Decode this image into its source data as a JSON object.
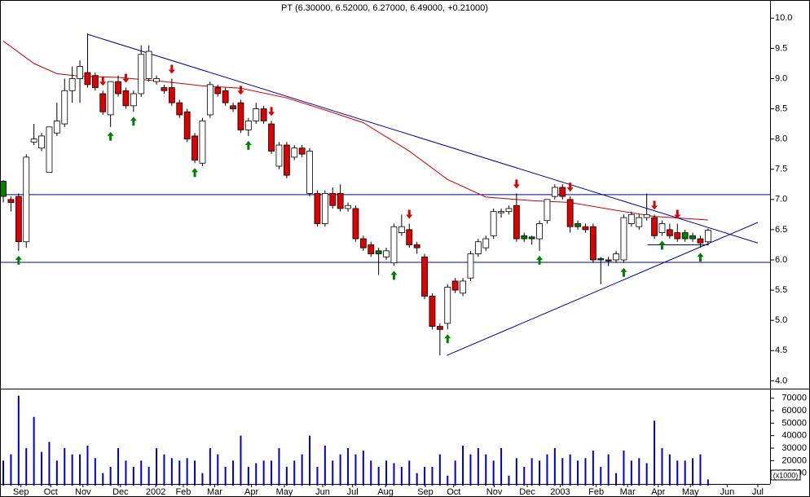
{
  "chart_data": {
    "type": "candlestick",
    "title": "PT (6.30000, 6.52000, 6.27000, 6.49000, +0.21000)",
    "xlim": [
      -0.43,
      100.1
    ],
    "xticks": [
      {
        "value": 2.3,
        "label": "Sep"
      },
      {
        "value": 6.2,
        "label": "Oct"
      },
      {
        "value": 10.4,
        "label": "Nov"
      },
      {
        "value": 15.3,
        "label": "Dec"
      },
      {
        "value": 19.9,
        "label": "2002"
      },
      {
        "value": 23.5,
        "label": "Feb"
      },
      {
        "value": 27.6,
        "label": "Mar"
      },
      {
        "value": 32.4,
        "label": "Apr"
      },
      {
        "value": 36.7,
        "label": "May"
      },
      {
        "value": 41.7,
        "label": "Jun"
      },
      {
        "value": 45.6,
        "label": "Jul"
      },
      {
        "value": 49.9,
        "label": "Aug"
      },
      {
        "value": 55.1,
        "label": "Sep"
      },
      {
        "value": 58.8,
        "label": "Oct"
      },
      {
        "value": 64.1,
        "label": "Nov"
      },
      {
        "value": 68.4,
        "label": "Dec"
      },
      {
        "value": 72.7,
        "label": "2003"
      },
      {
        "value": 77.4,
        "label": "Feb"
      },
      {
        "value": 81.5,
        "label": "Mar"
      },
      {
        "value": 85.5,
        "label": "Apr"
      },
      {
        "value": 89.7,
        "label": "May"
      },
      {
        "value": 94.5,
        "label": "Jun"
      },
      {
        "value": 98.5,
        "label": "Jul"
      }
    ],
    "ylim": [
      3.87,
      10.3
    ],
    "yticks": [
      {
        "value": 4,
        "label": "4.0"
      },
      4.5,
      {
        "value": 5,
        "label": "5.0"
      },
      5.5,
      {
        "value": 6,
        "label": "6.0"
      },
      6.5,
      {
        "value": 7,
        "label": "7.0"
      },
      7.5,
      {
        "value": 8,
        "label": "8.0"
      },
      8.5,
      {
        "value": 9,
        "label": "9.0"
      },
      9.5,
      {
        "value": 10,
        "label": "10.0"
      }
    ],
    "colors": {
      "up": "#ffffff",
      "down": "#dd0000",
      "down_above_previous": "#008000",
      "buy": "#008000",
      "sell": "#dd0000"
    },
    "candles": [
      [
        7.3,
        7.32,
        6.95,
        7.05
      ],
      [
        7.0,
        7.05,
        6.8,
        6.95
      ],
      [
        7.05,
        7.1,
        6.15,
        6.3
      ],
      [
        6.3,
        7.75,
        6.2,
        7.7
      ],
      [
        7.95,
        8.25,
        7.9,
        8.0
      ],
      [
        7.85,
        8.1,
        7.8,
        8.05
      ],
      [
        7.45,
        8.2,
        7.45,
        8.2
      ],
      [
        8.1,
        8.6,
        8.05,
        8.3
      ],
      [
        8.25,
        9.0,
        8.2,
        8.8
      ],
      [
        8.8,
        9.2,
        8.6,
        9.0
      ],
      [
        9.0,
        9.3,
        8.6,
        9.2
      ],
      [
        9.1,
        9.75,
        8.85,
        8.9
      ],
      [
        9.05,
        9.1,
        8.8,
        8.85
      ],
      [
        8.75,
        8.8,
        8.4,
        8.45
      ],
      [
        8.4,
        8.95,
        8.2,
        8.95
      ],
      [
        8.95,
        9.05,
        8.7,
        8.75
      ],
      [
        8.8,
        8.85,
        8.5,
        8.55
      ],
      [
        8.55,
        8.8,
        8.45,
        8.75
      ],
      [
        8.75,
        9.55,
        8.7,
        9.4
      ],
      [
        9.0,
        9.55,
        8.95,
        9.45
      ],
      [
        8.95,
        9.05,
        8.9,
        9.0
      ],
      [
        8.85,
        8.9,
        8.75,
        8.8
      ],
      [
        8.85,
        9.0,
        8.55,
        8.6
      ],
      [
        8.6,
        8.65,
        8.35,
        8.4
      ],
      [
        8.45,
        8.5,
        7.95,
        8.0
      ],
      [
        8.05,
        8.1,
        7.6,
        7.65
      ],
      [
        7.6,
        8.35,
        7.55,
        8.3
      ],
      [
        8.4,
        8.95,
        8.35,
        8.9
      ],
      [
        8.85,
        8.9,
        8.7,
        8.75
      ],
      [
        8.8,
        8.85,
        8.55,
        8.6
      ],
      [
        8.55,
        8.6,
        8.45,
        8.5
      ],
      [
        8.6,
        8.65,
        8.1,
        8.15
      ],
      [
        8.15,
        8.35,
        8.05,
        8.3
      ],
      [
        8.3,
        8.6,
        8.25,
        8.5
      ],
      [
        8.5,
        8.55,
        8.25,
        8.3
      ],
      [
        8.25,
        8.3,
        7.75,
        7.8
      ],
      [
        7.55,
        7.95,
        7.5,
        7.9
      ],
      [
        7.9,
        7.95,
        7.35,
        7.4
      ],
      [
        7.7,
        7.9,
        7.65,
        7.85
      ],
      [
        7.85,
        7.9,
        7.7,
        7.75
      ],
      [
        7.1,
        7.85,
        7.05,
        7.8
      ],
      [
        7.1,
        7.15,
        6.55,
        6.6
      ],
      [
        6.6,
        7.15,
        6.55,
        7.1
      ],
      [
        7.1,
        7.2,
        6.85,
        6.9
      ],
      [
        7.1,
        7.25,
        6.8,
        6.85
      ],
      [
        6.85,
        6.95,
        6.8,
        6.9
      ],
      [
        6.85,
        6.9,
        6.3,
        6.35
      ],
      [
        6.35,
        6.4,
        6.15,
        6.2
      ],
      [
        6.25,
        6.3,
        6.05,
        6.1
      ],
      [
        6.15,
        6.2,
        5.75,
        6.1
      ],
      [
        6.05,
        6.2,
        6.0,
        6.15
      ],
      [
        5.95,
        6.6,
        5.9,
        6.55
      ],
      [
        6.45,
        6.75,
        6.4,
        6.55
      ],
      [
        6.5,
        6.6,
        6.2,
        6.25
      ],
      [
        6.25,
        6.3,
        6.1,
        6.2
      ],
      [
        6.05,
        6.1,
        5.35,
        5.4
      ],
      [
        5.4,
        5.45,
        4.85,
        4.9
      ],
      [
        4.9,
        4.95,
        4.42,
        4.85
      ],
      [
        4.95,
        5.6,
        4.85,
        5.55
      ],
      [
        5.65,
        5.7,
        5.45,
        5.5
      ],
      [
        5.45,
        5.7,
        5.4,
        5.65
      ],
      [
        5.7,
        6.15,
        5.65,
        6.1
      ],
      [
        6.1,
        6.35,
        6.05,
        6.3
      ],
      [
        6.2,
        6.4,
        6.15,
        6.35
      ],
      [
        6.4,
        6.85,
        6.35,
        6.8
      ],
      [
        6.78,
        6.85,
        6.7,
        6.8
      ],
      [
        6.8,
        6.9,
        6.75,
        6.85
      ],
      [
        6.9,
        7.1,
        6.3,
        6.35
      ],
      [
        6.4,
        6.45,
        6.3,
        6.35
      ],
      [
        6.38,
        6.4,
        6.25,
        6.35
      ],
      [
        6.35,
        6.65,
        6.15,
        6.6
      ],
      [
        6.65,
        7.0,
        6.6,
        7.0
      ],
      [
        7.05,
        7.25,
        7.0,
        7.2
      ],
      [
        7.2,
        7.25,
        7.0,
        7.05
      ],
      [
        7.0,
        7.05,
        6.45,
        6.55
      ],
      [
        6.6,
        6.65,
        6.5,
        6.55
      ],
      [
        6.55,
        6.6,
        6.45,
        6.5
      ],
      [
        6.55,
        6.6,
        5.95,
        6.0
      ],
      [
        6.02,
        6.05,
        5.6,
        6.0
      ],
      [
        6.0,
        6.05,
        5.9,
        5.98
      ],
      [
        6.0,
        6.15,
        5.95,
        6.1
      ],
      [
        6.0,
        6.75,
        5.95,
        6.7
      ],
      [
        6.6,
        6.8,
        6.55,
        6.75
      ],
      [
        6.55,
        6.75,
        6.5,
        6.7
      ],
      [
        6.7,
        7.1,
        6.65,
        6.75
      ],
      [
        6.7,
        6.75,
        6.35,
        6.4
      ],
      [
        6.45,
        6.65,
        6.4,
        6.6
      ],
      [
        6.5,
        6.6,
        6.35,
        6.4
      ],
      [
        6.45,
        6.6,
        6.3,
        6.35
      ],
      [
        6.45,
        6.5,
        6.3,
        6.35
      ],
      [
        6.4,
        6.45,
        6.3,
        6.35
      ],
      [
        6.35,
        6.4,
        6.2,
        6.28
      ],
      [
        6.3,
        6.52,
        6.27,
        6.49
      ]
    ],
    "buy_signals": [
      2,
      14,
      17,
      25,
      32,
      51,
      58,
      70,
      81,
      86,
      91
    ],
    "sell_signals": [
      13,
      16,
      22,
      31,
      35,
      53,
      67,
      74,
      85,
      88
    ],
    "moving_average": {
      "color": "#cc0000",
      "x": [
        0,
        4,
        7,
        10,
        15,
        21,
        26,
        31,
        37,
        42,
        47,
        53,
        58,
        63,
        69,
        74,
        80,
        85,
        92
      ],
      "values": [
        9.62,
        9.25,
        9.08,
        9.04,
        9.02,
        8.95,
        8.88,
        8.84,
        8.68,
        8.48,
        8.27,
        7.8,
        7.33,
        7.04,
        6.98,
        6.95,
        6.82,
        6.72,
        6.66
      ]
    },
    "trend_color": "#000099",
    "trendlines": [
      {
        "x": [
          11.06,
          98.5
        ],
        "values": [
          9.73,
          6.28
        ]
      },
      {
        "x": [
          57.9,
          98.5
        ],
        "values": [
          4.42,
          6.62
        ]
      },
      {
        "x": [
          84.1,
          92.1
        ],
        "values": [
          6.25,
          6.25
        ]
      }
    ],
    "levels": [
      7.08,
      5.96
    ],
    "volume": {
      "color": "#0000cc",
      "ylim": [
        0,
        77000
      ],
      "yticks": [
        10000,
        20000,
        30000,
        40000,
        50000,
        60000,
        70000
      ],
      "unit_label": "(x1000)",
      "values": [
        20000,
        25000,
        72000,
        30000,
        55000,
        27000,
        35000,
        20000,
        30000,
        25000,
        25000,
        32000,
        22000,
        10000,
        15000,
        30000,
        20000,
        15000,
        20000,
        15000,
        30000,
        25000,
        22000,
        20000,
        22000,
        20000,
        10000,
        30000,
        25000,
        15000,
        20000,
        40000,
        15000,
        18000,
        20000,
        20000,
        30000,
        15000,
        20000,
        25000,
        40000,
        15000,
        32000,
        20000,
        25000,
        30000,
        25000,
        28000,
        20000,
        15000,
        20000,
        18000,
        15000,
        20000,
        10000,
        15000,
        15000,
        25000,
        8000,
        20000,
        32000,
        25000,
        30000,
        25000,
        20000,
        30000,
        8000,
        22000,
        15000,
        22000,
        20000,
        25000,
        30000,
        22000,
        25000,
        20000,
        22000,
        28000,
        15000,
        25000,
        10000,
        28000,
        20000,
        22000,
        18000,
        52000,
        30000,
        25000,
        20000,
        20000,
        22000,
        25000,
        5000
      ]
    }
  }
}
